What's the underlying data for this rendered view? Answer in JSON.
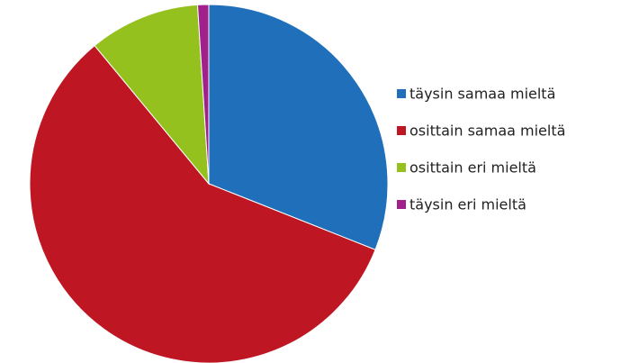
{
  "chart_data": {
    "type": "pie",
    "categories": [
      "täysin samaa mieltä",
      "osittain samaa mieltä",
      "osittain eri mieltä",
      "täysin eri mieltä"
    ],
    "values": [
      31,
      58,
      10,
      1
    ],
    "colors": [
      "#1f6fba",
      "#be1622",
      "#95c11f",
      "#a0208c"
    ],
    "legend": "right"
  }
}
